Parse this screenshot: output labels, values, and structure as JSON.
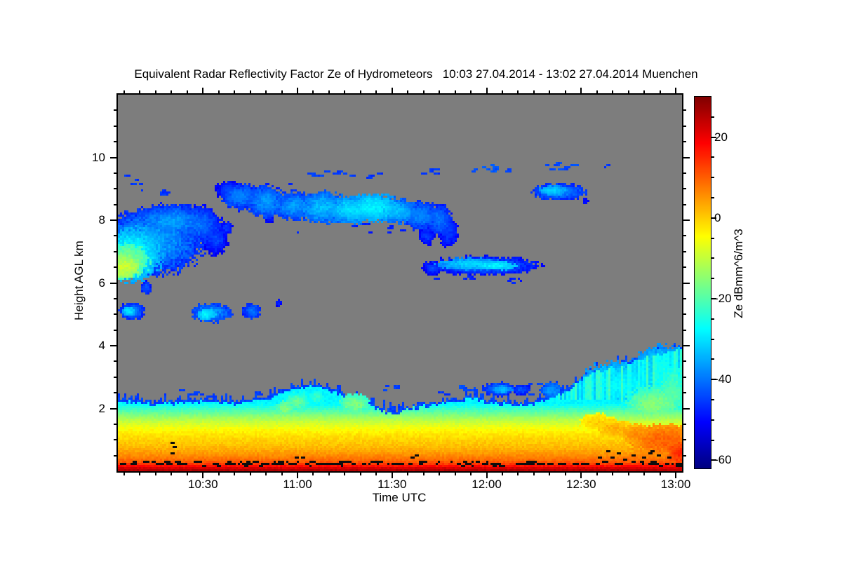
{
  "figure": {
    "background": "#ffffff"
  },
  "chart_data": {
    "type": "heatmap",
    "title": "Equivalent Radar Reflectivity Factor Ze of Hydrometeors   10:03 27.04.2014 - 13:02 27.04.2014 Muenchen",
    "xlabel": "Time UTC",
    "ylabel": "Height AGL km",
    "x_axis": {
      "start_time": "10:03",
      "end_time": "13:02",
      "duration_min": 179,
      "tick_labels": [
        "10:30",
        "11:00",
        "11:30",
        "12:00",
        "12:30",
        "13:00"
      ],
      "tick_minutes": [
        27,
        57,
        87,
        117,
        147,
        177
      ],
      "minor_tick_every_min": 5
    },
    "y_axis": {
      "min_km": 0,
      "max_km": 12,
      "tick_labels": [
        "2",
        "4",
        "6",
        "8",
        "10"
      ],
      "tick_values": [
        2,
        4,
        6,
        8,
        10
      ],
      "minor_tick_every_km": 0.5
    },
    "colorbar": {
      "label": "Ze dBmm^6/m^3",
      "tick_values": [
        20,
        0,
        -20,
        -40,
        -60
      ],
      "minor_tick_every": 5,
      "vmin": -62,
      "vmax": 30,
      "colormap": "jet"
    },
    "no_signal_color": "#7d7d7d",
    "axis_color": "#000000",
    "speckle_color": "#0d0d0d",
    "seed": 1337,
    "boundary_layer": {
      "profile_stops_km_db": [
        [
          0,
          26
        ],
        [
          0.07,
          24
        ],
        [
          0.13,
          20
        ],
        [
          0.2,
          15
        ],
        [
          0.28,
          11
        ],
        [
          0.4,
          8
        ],
        [
          0.55,
          5
        ],
        [
          0.75,
          2
        ],
        [
          0.95,
          0
        ],
        [
          1.15,
          -2
        ],
        [
          1.35,
          -5
        ],
        [
          1.55,
          -9
        ],
        [
          1.7,
          -13
        ],
        [
          1.85,
          -18
        ],
        [
          2.0,
          -23
        ],
        [
          2.15,
          -28
        ]
      ],
      "top_km_points": [
        [
          0,
          2.32
        ],
        [
          6,
          2.28
        ],
        [
          12,
          2.2
        ],
        [
          18,
          2.26
        ],
        [
          24,
          2.3
        ],
        [
          30,
          2.28
        ],
        [
          36,
          2.25
        ],
        [
          42,
          2.3
        ],
        [
          48,
          2.4
        ],
        [
          53,
          2.62
        ],
        [
          57,
          2.72
        ],
        [
          61,
          2.82
        ],
        [
          65,
          2.75
        ],
        [
          69,
          2.6
        ],
        [
          73,
          2.45
        ],
        [
          78,
          2.32
        ],
        [
          82,
          2.1
        ],
        [
          85,
          1.95
        ],
        [
          88,
          1.92
        ],
        [
          91,
          2.02
        ],
        [
          95,
          2.12
        ],
        [
          100,
          2.2
        ],
        [
          104,
          2.28
        ],
        [
          108,
          2.32
        ],
        [
          112,
          2.42
        ],
        [
          116,
          2.32
        ],
        [
          120,
          2.24
        ],
        [
          125,
          2.2
        ],
        [
          130,
          2.22
        ],
        [
          134,
          2.28
        ],
        [
          138,
          2.4
        ],
        [
          142,
          2.62
        ],
        [
          146,
          2.95
        ],
        [
          150,
          3.18
        ],
        [
          154,
          3.3
        ],
        [
          158,
          3.42
        ],
        [
          162,
          3.52
        ],
        [
          166,
          3.65
        ],
        [
          170,
          3.78
        ],
        [
          174,
          3.88
        ],
        [
          179,
          4.02
        ]
      ],
      "streak_after_min": 139,
      "streak_above_km": 2.3
    },
    "cloud_blobs": [
      {
        "t": 10,
        "h": 7.3,
        "rt": 17,
        "rh": 1.05,
        "db": -34,
        "f": 14
      },
      {
        "t": 4,
        "h": 6.9,
        "rt": 10,
        "rh": 0.85,
        "db": -26,
        "f": 10
      },
      {
        "t": 3,
        "h": 6.7,
        "rt": 7,
        "rh": 0.55,
        "db": -15,
        "f": 8
      },
      {
        "t": 2,
        "h": 6.5,
        "rt": 4.5,
        "rh": 0.35,
        "db": -9,
        "f": 6
      },
      {
        "t": 17,
        "h": 7.95,
        "rt": 13,
        "rh": 0.55,
        "db": -36,
        "f": 12
      },
      {
        "t": 26,
        "h": 7.85,
        "rt": 7,
        "rh": 0.6,
        "db": -40,
        "f": 10
      },
      {
        "t": 31,
        "h": 7.4,
        "rt": 4,
        "rh": 0.5,
        "db": -44,
        "f": 8
      },
      {
        "t": 34.5,
        "h": 7.75,
        "rt": 2,
        "rh": 0.2,
        "db": -45,
        "f": 6
      },
      {
        "t": 9,
        "h": 5.85,
        "rt": 1.8,
        "rh": 0.22,
        "db": -42,
        "f": 8
      },
      {
        "t": 4.5,
        "h": 5.1,
        "rt": 4,
        "rh": 0.28,
        "db": -38,
        "f": 10
      },
      {
        "t": 3.5,
        "h": 5.1,
        "rt": 2,
        "rh": 0.15,
        "db": -30,
        "f": 6
      },
      {
        "t": 29.5,
        "h": 5.05,
        "rt": 6.5,
        "rh": 0.3,
        "db": -36,
        "f": 10
      },
      {
        "t": 28,
        "h": 5.0,
        "rt": 3,
        "rh": 0.16,
        "db": -28,
        "f": 6
      },
      {
        "t": 42.5,
        "h": 5.1,
        "rt": 2.8,
        "rh": 0.25,
        "db": -40,
        "f": 8
      },
      {
        "t": 51,
        "h": 5.35,
        "rt": 1.2,
        "rh": 0.12,
        "db": -47,
        "f": 5
      },
      {
        "t": 35,
        "h": 8.95,
        "rt": 4,
        "rh": 0.3,
        "db": -44,
        "f": 8
      },
      {
        "t": 39,
        "h": 8.75,
        "rt": 6,
        "rh": 0.42,
        "db": -38,
        "f": 10
      },
      {
        "t": 47,
        "h": 8.6,
        "rt": 6,
        "rh": 0.5,
        "db": -36,
        "f": 10
      },
      {
        "t": 56,
        "h": 8.45,
        "rt": 7,
        "rh": 0.45,
        "db": -36,
        "f": 10
      },
      {
        "t": 65,
        "h": 8.4,
        "rt": 8,
        "rh": 0.5,
        "db": -33,
        "f": 10
      },
      {
        "t": 74,
        "h": 8.35,
        "rt": 8,
        "rh": 0.45,
        "db": -30,
        "f": 10
      },
      {
        "t": 81,
        "h": 8.4,
        "rt": 8,
        "rh": 0.45,
        "db": -28,
        "f": 9
      },
      {
        "t": 88,
        "h": 8.3,
        "rt": 7,
        "rh": 0.4,
        "db": -33,
        "f": 9
      },
      {
        "t": 96,
        "h": 8.15,
        "rt": 6,
        "rh": 0.45,
        "db": -38,
        "f": 9
      },
      {
        "t": 102,
        "h": 8.0,
        "rt": 4,
        "rh": 0.5,
        "db": -40,
        "f": 8
      },
      {
        "t": 105,
        "h": 7.6,
        "rt": 3,
        "rh": 0.45,
        "db": -45,
        "f": 6
      },
      {
        "t": 48,
        "h": 8.05,
        "rt": 1.5,
        "rh": 0.15,
        "db": -47,
        "f": 5
      },
      {
        "t": 98,
        "h": 7.5,
        "rt": 2.5,
        "rh": 0.3,
        "db": -45,
        "f": 6
      },
      {
        "t": 140,
        "h": 8.9,
        "rt": 8.5,
        "rh": 0.26,
        "db": -38,
        "f": 9
      },
      {
        "t": 138,
        "h": 8.95,
        "rt": 4.5,
        "rh": 0.15,
        "db": -31,
        "f": 6
      },
      {
        "t": 148.5,
        "h": 8.62,
        "rt": 1,
        "rh": 0.1,
        "db": -48,
        "f": 4
      },
      {
        "t": 116,
        "h": 6.55,
        "rt": 18,
        "rh": 0.3,
        "db": -40,
        "f": 10
      },
      {
        "t": 112,
        "h": 6.6,
        "rt": 11,
        "rh": 0.2,
        "db": -31,
        "f": 8
      },
      {
        "t": 120,
        "h": 6.55,
        "rt": 6,
        "rh": 0.15,
        "db": -28,
        "f": 6
      },
      {
        "t": 100,
        "h": 6.45,
        "rt": 3,
        "rh": 0.2,
        "db": -44,
        "f": 8
      },
      {
        "t": 121,
        "h": 2.62,
        "rt": 5,
        "rh": 0.22,
        "db": -38,
        "f": 10
      },
      {
        "t": 122,
        "h": 2.6,
        "rt": 3,
        "rh": 0.13,
        "db": -33,
        "f": 6
      },
      {
        "t": 128,
        "h": 2.6,
        "rt": 3,
        "rh": 0.18,
        "db": -42,
        "f": 8
      },
      {
        "t": 137.5,
        "h": 2.58,
        "rt": 3.5,
        "rh": 0.28,
        "db": -36,
        "f": 9
      },
      {
        "t": 75,
        "h": 2.15,
        "rt": 5,
        "rh": 0.3,
        "db": -15,
        "f": 9
      },
      {
        "t": 57,
        "h": 2.2,
        "rt": 4,
        "rh": 0.33,
        "db": -18,
        "f": 9
      },
      {
        "t": 63,
        "h": 2.35,
        "rt": 3,
        "rh": 0.3,
        "db": -22,
        "f": 9
      },
      {
        "t": 53,
        "h": 2.0,
        "rt": 3,
        "rh": 0.25,
        "db": -15,
        "f": 8
      },
      {
        "t": 160,
        "h": 2.7,
        "rt": 14,
        "rh": 0.8,
        "db": -27,
        "f": 10
      },
      {
        "t": 172,
        "h": 3.0,
        "rt": 9,
        "rh": 1.0,
        "db": -28,
        "f": 10
      },
      {
        "t": 170,
        "h": 2.1,
        "rt": 9,
        "rh": 0.6,
        "db": -15,
        "f": 9
      },
      {
        "t": 176,
        "h": 2.5,
        "rt": 5,
        "rh": 0.9,
        "db": -19,
        "f": 10
      },
      {
        "t": 152,
        "h": 1.55,
        "rt": 6,
        "rh": 0.3,
        "db": 0,
        "f": 5
      },
      {
        "t": 158,
        "h": 1.35,
        "rt": 6,
        "rh": 0.3,
        "db": 3,
        "f": 5
      },
      {
        "t": 165,
        "h": 1.15,
        "rt": 6,
        "rh": 0.35,
        "db": 6,
        "f": 5
      },
      {
        "t": 174,
        "h": 0.95,
        "rt": 11,
        "rh": 0.55,
        "db": 10,
        "f": 6
      },
      {
        "t": 178.5,
        "h": 0.55,
        "rt": 4,
        "rh": 0.35,
        "db": 15,
        "f": 5
      }
    ],
    "dash_bands": [
      {
        "t0": 1.5,
        "t1": 7,
        "h0": 9.1,
        "h1": 9.45,
        "db": -46,
        "d": 0.6
      },
      {
        "t0": 7,
        "t1": 15,
        "h0": 8.8,
        "h1": 9.25,
        "db": -46,
        "d": 0.6
      },
      {
        "t0": 40,
        "t1": 55,
        "h0": 9.0,
        "h1": 9.3,
        "db": -48,
        "d": 0.3
      },
      {
        "t0": 55,
        "t1": 100,
        "h0": 7.6,
        "h1": 7.95,
        "db": -48,
        "d": 0.2
      },
      {
        "t0": 58,
        "t1": 74,
        "h0": 9.45,
        "h1": 9.62,
        "db": -45,
        "d": 0.6
      },
      {
        "t0": 75,
        "t1": 84,
        "h0": 9.38,
        "h1": 9.55,
        "db": -46,
        "d": 0.5
      },
      {
        "t0": 93,
        "t1": 101,
        "h0": 9.5,
        "h1": 9.72,
        "db": -46,
        "d": 0.5
      },
      {
        "t0": 111,
        "t1": 119,
        "h0": 9.55,
        "h1": 9.8,
        "db": -43,
        "d": 0.9
      },
      {
        "t0": 122.5,
        "t1": 124.5,
        "h0": 9.55,
        "h1": 9.75,
        "db": -45,
        "d": 0.9
      },
      {
        "t0": 134,
        "t1": 146,
        "h0": 9.6,
        "h1": 9.85,
        "db": -44,
        "d": 0.8
      },
      {
        "t0": 154.5,
        "t1": 156.5,
        "h0": 9.6,
        "h1": 9.78,
        "db": -46,
        "d": 0.9
      },
      {
        "t0": 100,
        "t1": 130,
        "h0": 6.05,
        "h1": 6.25,
        "db": -48,
        "d": 0.3
      },
      {
        "t0": 19,
        "t1": 29,
        "h0": 2.35,
        "h1": 2.6,
        "db": -45,
        "d": 0.5
      },
      {
        "t0": 43,
        "t1": 46,
        "h0": 2.4,
        "h1": 2.62,
        "db": -45,
        "d": 0.7
      },
      {
        "t0": 84,
        "t1": 89,
        "h0": 2.5,
        "h1": 2.78,
        "db": -45,
        "d": 0.6
      },
      {
        "t0": 100,
        "t1": 104,
        "h0": 2.45,
        "h1": 2.6,
        "db": -46,
        "d": 0.4
      },
      {
        "t0": 106,
        "t1": 113,
        "h0": 2.55,
        "h1": 2.85,
        "db": -44,
        "d": 0.6
      },
      {
        "t0": 128,
        "t1": 136,
        "h0": 2.45,
        "h1": 2.85,
        "db": -45,
        "d": 0.5
      },
      {
        "t0": 151.5,
        "t1": 158,
        "h0": 0.02,
        "h1": 0.12,
        "db": -21,
        "d": 1.4
      }
    ],
    "clutter_speckles": {
      "count": 150,
      "h_center": 0.28,
      "h_spread": 0.09,
      "extra_dots": [
        [
          16.5,
          0.62
        ],
        [
          17.2,
          0.8
        ],
        [
          17.0,
          0.95
        ],
        [
          56,
          0.45
        ],
        [
          58,
          0.5
        ],
        [
          93,
          0.5
        ],
        [
          94,
          0.55
        ],
        [
          152,
          0.45
        ],
        [
          156,
          0.5
        ],
        [
          158,
          0.62
        ],
        [
          160,
          0.4
        ],
        [
          163,
          0.55
        ],
        [
          166,
          0.48
        ],
        [
          168,
          0.6
        ],
        [
          171,
          0.52
        ],
        [
          174,
          0.45
        ],
        [
          155,
          0.68
        ],
        [
          169,
          0.68
        ]
      ]
    }
  }
}
